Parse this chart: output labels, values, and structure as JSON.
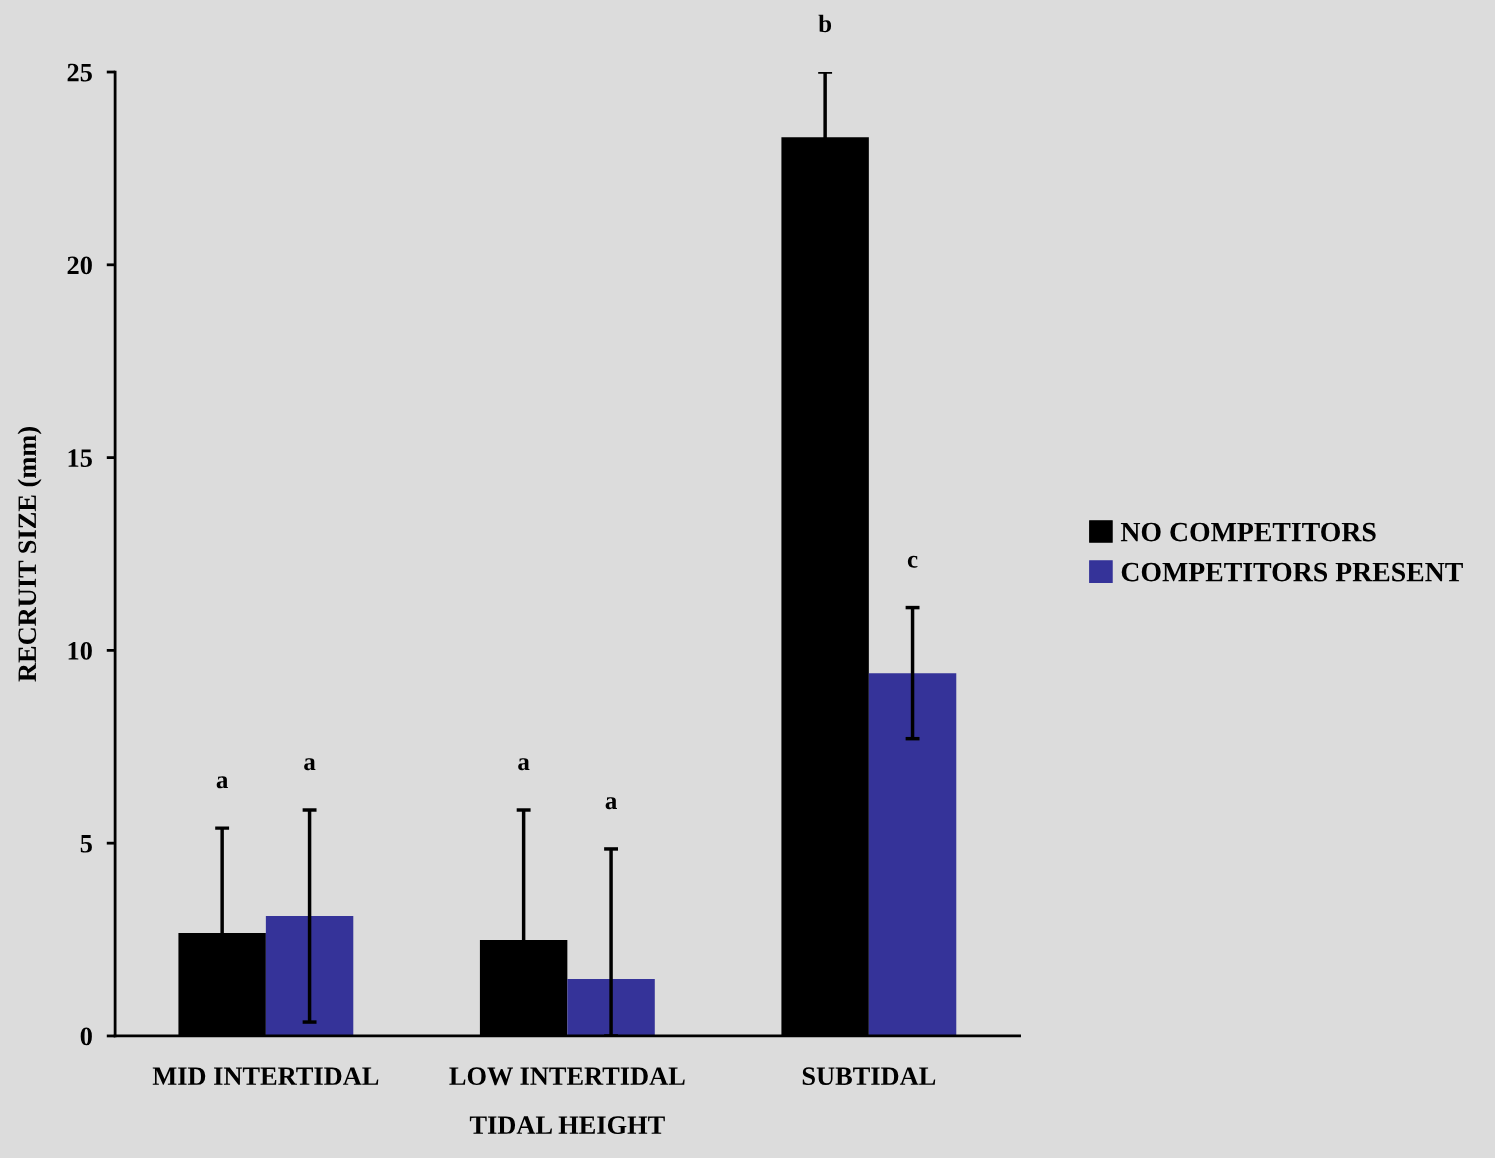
{
  "chart_data": {
    "type": "bar",
    "xlabel": "TIDAL HEIGHT",
    "ylabel": "RECRUIT SIZE (mm)",
    "categories": [
      "MID INTERTIDAL",
      "LOW INTERTIDAL",
      "SUBTIDAL"
    ],
    "series": [
      {
        "name": "NO COMPETITORS",
        "color": "#000000",
        "values": [
          2.67,
          2.49,
          23.31
        ],
        "errors": [
          2.72,
          3.37,
          1.69
        ]
      },
      {
        "name": "COMPETITORS PRESENT",
        "color": "#353399",
        "values": [
          3.11,
          1.48,
          9.41
        ],
        "errors": [
          2.75,
          [
            0,
            4.85
          ],
          1.7
        ]
      }
    ],
    "ylim": [
      0,
      25
    ],
    "yticks": [
      0,
      5,
      10,
      15,
      20,
      25
    ],
    "grid": false,
    "legend": "right",
    "annotations": [
      "a",
      "a",
      "a",
      "a",
      "b",
      "c"
    ]
  }
}
